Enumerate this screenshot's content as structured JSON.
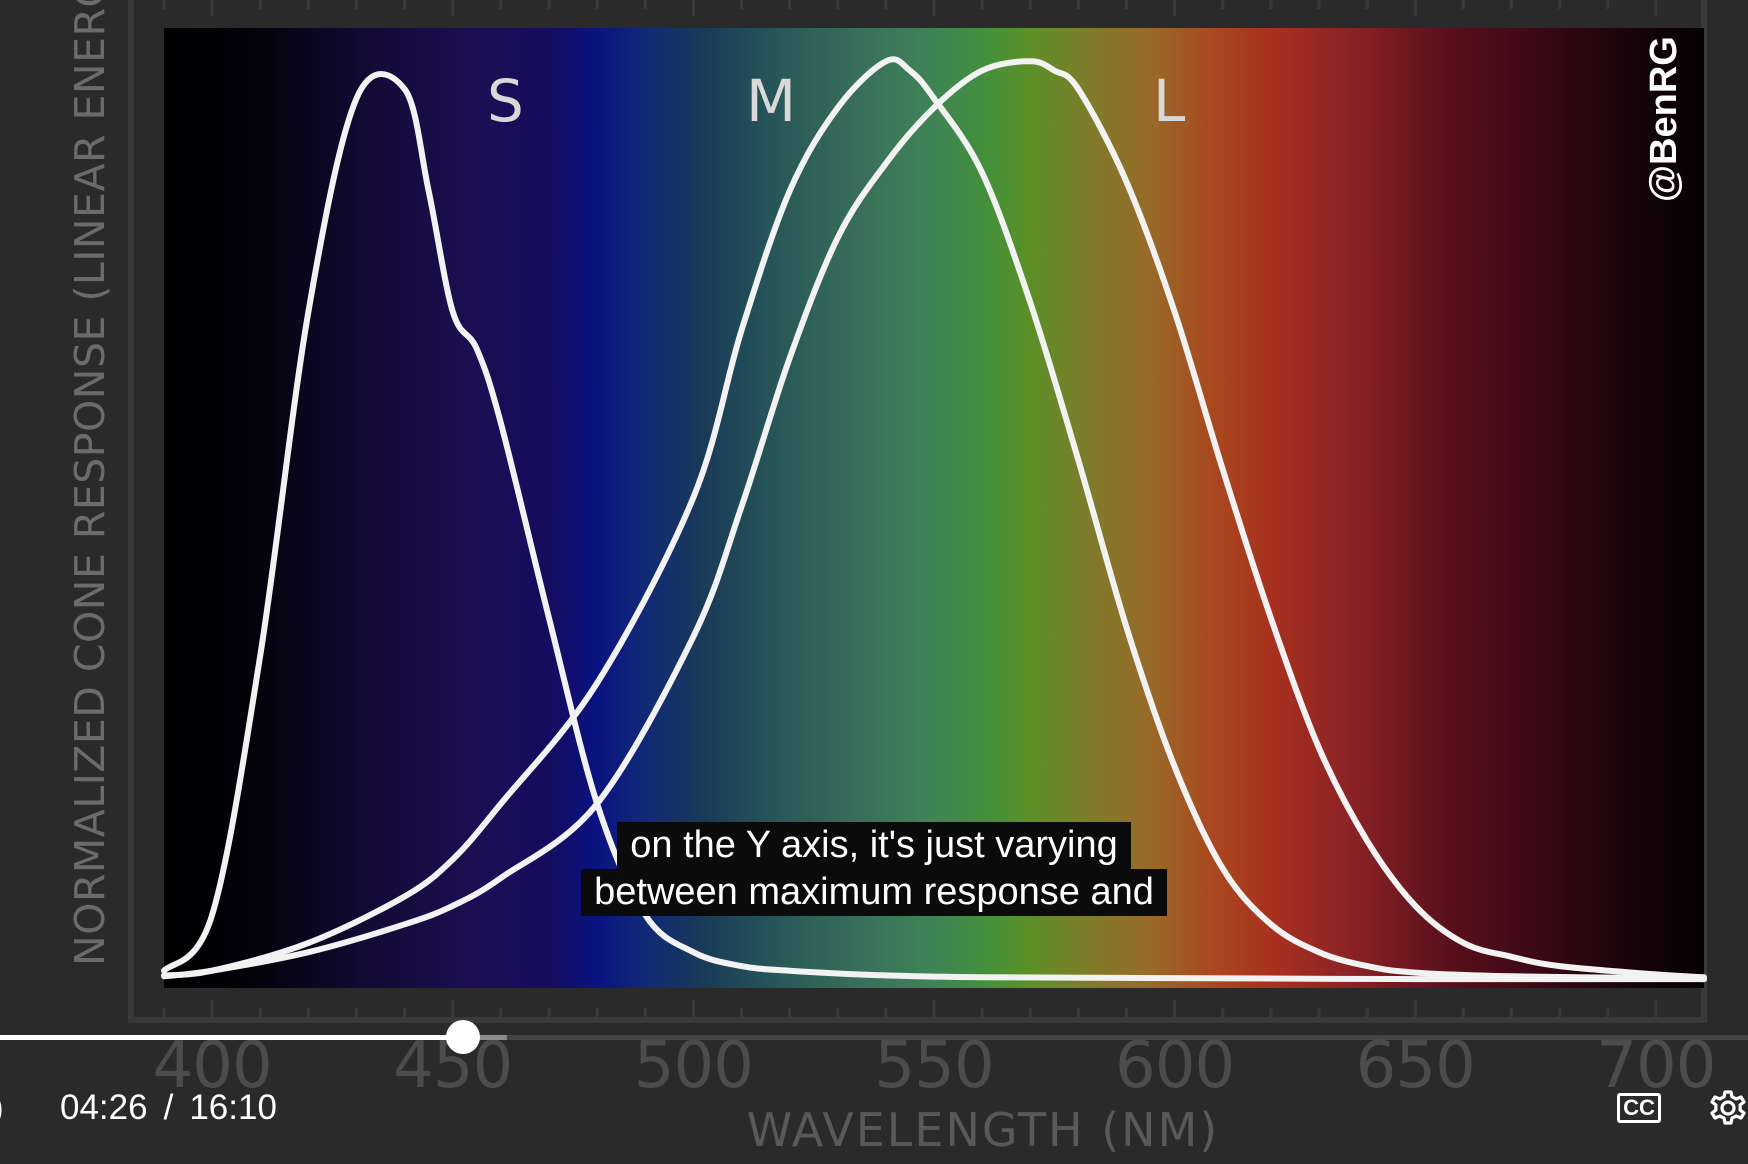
{
  "chart_data": {
    "type": "line",
    "xlabel": "WAVELENGTH (NM)",
    "ylabel": "NORMALIZED CONE RESPONSE (LINEAR ENERGY)",
    "xlim": [
      390,
      710
    ],
    "ylim": [
      0,
      1
    ],
    "x_ticks": [
      400,
      450,
      500,
      550,
      600,
      650,
      700
    ],
    "watermark": "@BenRG",
    "series": [
      {
        "name": "S",
        "x": [
          390,
          400,
          410,
          420,
          430,
          440,
          445,
          450,
          455,
          460,
          470,
          480,
          490,
          500,
          510,
          520,
          540,
          560,
          600,
          650,
          700,
          710
        ],
        "y": [
          0.01,
          0.07,
          0.35,
          0.72,
          0.95,
          0.96,
          0.85,
          0.72,
          0.68,
          0.6,
          0.39,
          0.19,
          0.07,
          0.03,
          0.015,
          0.01,
          0.005,
          0.003,
          0.002,
          0.001,
          0.001,
          0.001
        ]
      },
      {
        "name": "M",
        "x": [
          390,
          400,
          420,
          440,
          450,
          460,
          480,
          500,
          510,
          520,
          530,
          540,
          545,
          550,
          560,
          570,
          580,
          590,
          600,
          610,
          620,
          630,
          640,
          650,
          670,
          700,
          710
        ],
        "y": [
          0.005,
          0.01,
          0.04,
          0.09,
          0.13,
          0.19,
          0.32,
          0.52,
          0.7,
          0.85,
          0.94,
          0.99,
          0.98,
          0.95,
          0.87,
          0.73,
          0.56,
          0.38,
          0.23,
          0.12,
          0.06,
          0.03,
          0.015,
          0.008,
          0.004,
          0.002,
          0.001
        ]
      },
      {
        "name": "L",
        "x": [
          390,
          400,
          420,
          440,
          450,
          460,
          480,
          500,
          510,
          520,
          530,
          540,
          550,
          560,
          570,
          575,
          580,
          590,
          600,
          610,
          620,
          630,
          640,
          650,
          660,
          670,
          680,
          700,
          710
        ],
        "y": [
          0.004,
          0.01,
          0.03,
          0.06,
          0.08,
          0.11,
          0.19,
          0.37,
          0.51,
          0.67,
          0.8,
          0.88,
          0.94,
          0.98,
          0.99,
          0.98,
          0.96,
          0.86,
          0.72,
          0.55,
          0.39,
          0.25,
          0.15,
          0.08,
          0.04,
          0.025,
          0.015,
          0.006,
          0.003
        ]
      }
    ]
  },
  "captions": {
    "line1": "on the Y axis, it's just varying",
    "line2": "between maximum response and"
  },
  "player": {
    "current_time": "04:26",
    "separator": "/",
    "duration": "16:10",
    "progress": 0.2643,
    "buffered": 0.29,
    "edge_glyph": ")",
    "cc_label": "CC",
    "settings_icon": "gear-icon"
  }
}
